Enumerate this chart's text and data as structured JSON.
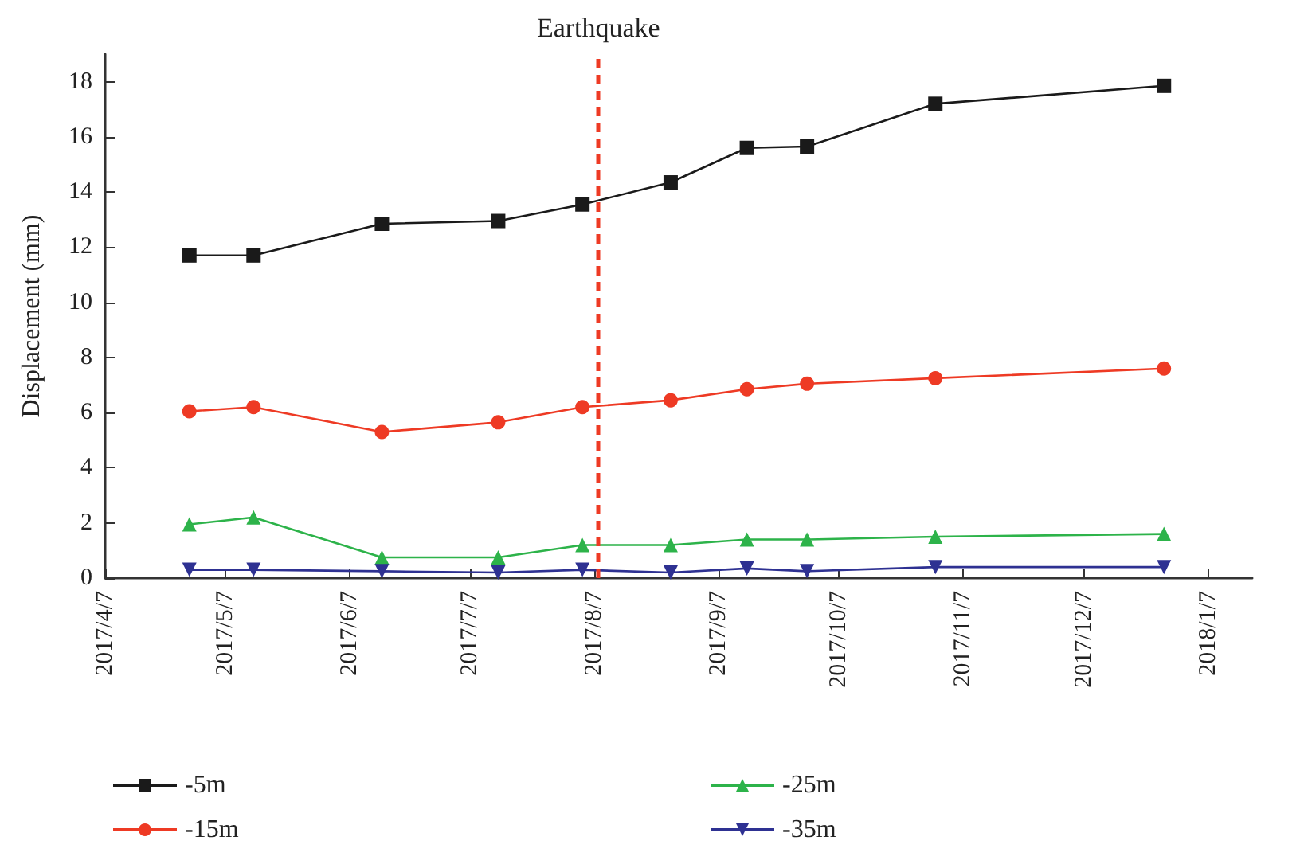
{
  "chart_data": {
    "type": "line",
    "ylabel": "Displacement (mm)",
    "x": [
      "2017-04-28",
      "2017-05-14",
      "2017-06-15",
      "2017-07-14",
      "2017-08-04",
      "2017-08-26",
      "2017-09-14",
      "2017-09-29",
      "2017-10-31",
      "2017-12-27"
    ],
    "series": [
      {
        "name": "-5m",
        "color": "#1a1a1a",
        "marker": "square",
        "values": [
          11.7,
          11.7,
          12.85,
          12.95,
          13.55,
          14.35,
          15.6,
          15.65,
          17.2,
          17.85
        ]
      },
      {
        "name": "-15m",
        "color": "#ee3a24",
        "marker": "circle",
        "values": [
          6.05,
          6.2,
          5.3,
          5.65,
          6.2,
          6.45,
          6.85,
          7.05,
          7.25,
          7.6
        ]
      },
      {
        "name": "-25m",
        "color": "#2db34a",
        "marker": "triangle",
        "values": [
          1.95,
          2.2,
          0.75,
          0.75,
          1.2,
          1.2,
          1.4,
          1.4,
          1.5,
          1.6
        ]
      },
      {
        "name": "-35m",
        "color": "#2e3192",
        "marker": "triangle-down",
        "values": [
          0.3,
          0.3,
          0.25,
          0.2,
          0.3,
          0.2,
          0.35,
          0.25,
          0.4,
          0.4
        ]
      }
    ],
    "xlim": [
      "2017-04-07",
      "2018-01-18"
    ],
    "xticks": [
      {
        "value": "2017-04-07",
        "label": "2017/4/7"
      },
      {
        "value": "2017-05-07",
        "label": "2017/5/7"
      },
      {
        "value": "2017-06-07",
        "label": "2017/6/7"
      },
      {
        "value": "2017-07-07",
        "label": "2017/7/7"
      },
      {
        "value": "2017-08-07",
        "label": "2017/8/7"
      },
      {
        "value": "2017-09-07",
        "label": "2017/9/7"
      },
      {
        "value": "2017-10-07",
        "label": "2017/10/7"
      },
      {
        "value": "2017-11-07",
        "label": "2017/11/7"
      },
      {
        "value": "2017-12-07",
        "label": "2017/12/7"
      },
      {
        "value": "2018-01-07",
        "label": "2018/1/7"
      }
    ],
    "ylim": [
      0,
      19
    ],
    "yticks": [
      0,
      2,
      4,
      6,
      8,
      10,
      12,
      14,
      16,
      18
    ],
    "ref_lines": [
      {
        "axis": "x",
        "value": "2017-08-08",
        "label": "Earthquake",
        "color": "#ee3a24",
        "line_style": "dashed"
      }
    ],
    "grid": false,
    "legend": "bottom",
    "line_style": "solid"
  }
}
